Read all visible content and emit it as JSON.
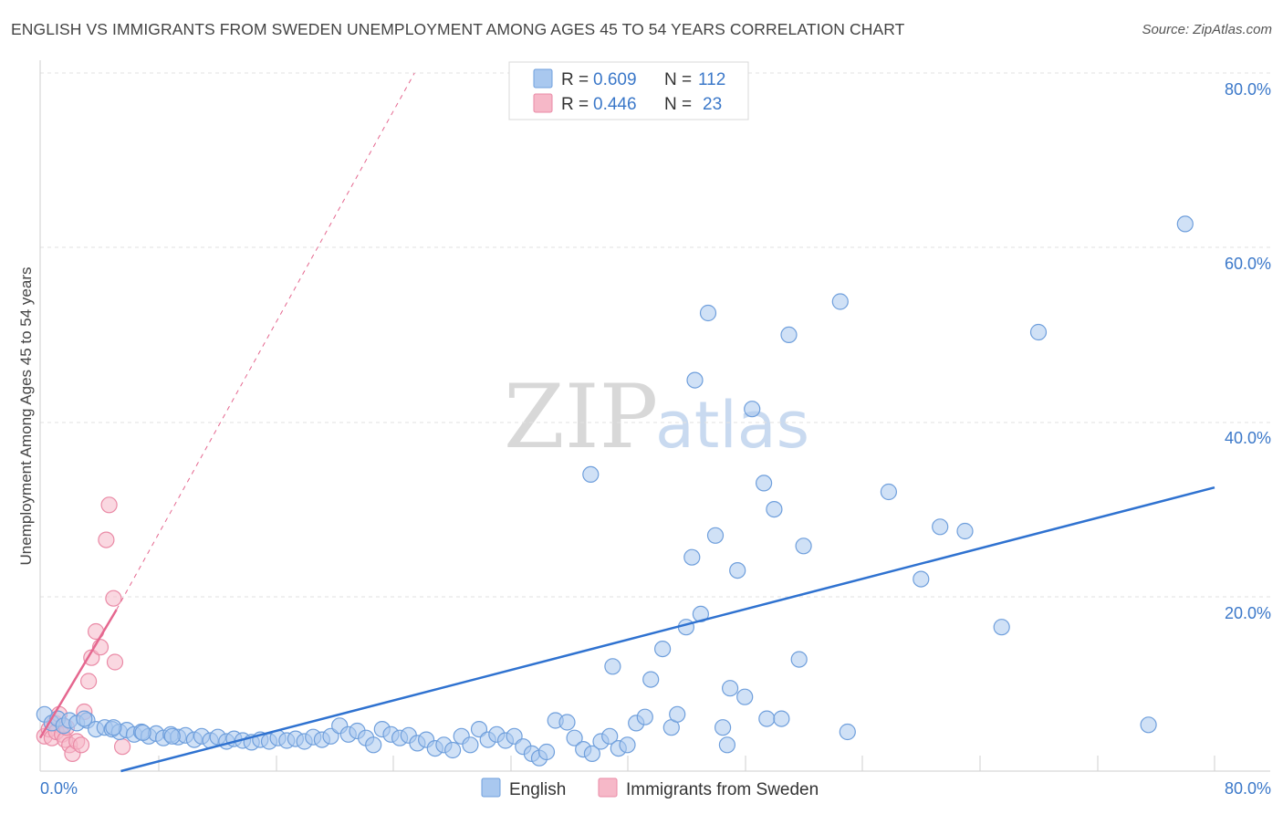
{
  "chart_data": {
    "type": "scatter",
    "title": "ENGLISH VS IMMIGRANTS FROM SWEDEN UNEMPLOYMENT AMONG AGES 45 TO 54 YEARS CORRELATION CHART",
    "source": "Source: ZipAtlas.com",
    "ylabel": "Unemployment Among Ages 45 to 54 years",
    "xlabel": "",
    "xlim": [
      0,
      80
    ],
    "ylim": [
      0,
      80
    ],
    "x_tick_labels": [
      "0.0%",
      "80.0%"
    ],
    "y_tick_labels": [
      "20.0%",
      "40.0%",
      "60.0%",
      "80.0%"
    ],
    "watermark": {
      "zip": "ZIP",
      "atlas": "atlas"
    },
    "legend": {
      "r_label": "R =",
      "n_label": "N =",
      "entries": [
        {
          "name": "English",
          "r": "0.609",
          "n": "112"
        },
        {
          "name": "Immigrants from Sweden",
          "r": "0.446",
          "n": "23"
        }
      ]
    },
    "colors": {
      "english_fill": "#a9c8ef",
      "english_stroke": "#6f9fdc",
      "english_line": "#2f72d0",
      "sweden_fill": "#f6b8c8",
      "sweden_stroke": "#ea8aa6",
      "sweden_line": "#e5678f"
    },
    "series": [
      {
        "name": "English",
        "trend": {
          "x1": 5.5,
          "y1": 0,
          "x2": 80,
          "y2": 32.5
        },
        "points": [
          [
            0.3,
            6.5
          ],
          [
            0.8,
            5.5
          ],
          [
            1.2,
            6.0
          ],
          [
            1.6,
            5.2
          ],
          [
            2.0,
            5.8
          ],
          [
            2.5,
            5.5
          ],
          [
            3.2,
            5.8
          ],
          [
            3.8,
            4.8
          ],
          [
            4.4,
            5.0
          ],
          [
            4.9,
            4.8
          ],
          [
            5.4,
            4.5
          ],
          [
            5.9,
            4.7
          ],
          [
            6.4,
            4.2
          ],
          [
            6.9,
            4.5
          ],
          [
            7.4,
            4.0
          ],
          [
            7.9,
            4.3
          ],
          [
            8.4,
            3.8
          ],
          [
            8.9,
            4.2
          ],
          [
            9.4,
            3.9
          ],
          [
            9.9,
            4.1
          ],
          [
            10.5,
            3.6
          ],
          [
            11.0,
            4.0
          ],
          [
            11.6,
            3.5
          ],
          [
            12.1,
            3.9
          ],
          [
            12.7,
            3.4
          ],
          [
            13.2,
            3.7
          ],
          [
            13.8,
            3.5
          ],
          [
            14.4,
            3.3
          ],
          [
            15.0,
            3.6
          ],
          [
            15.6,
            3.4
          ],
          [
            16.2,
            3.8
          ],
          [
            16.8,
            3.5
          ],
          [
            17.4,
            3.7
          ],
          [
            18.0,
            3.4
          ],
          [
            18.6,
            3.9
          ],
          [
            19.2,
            3.6
          ],
          [
            19.8,
            4.0
          ],
          [
            20.4,
            5.2
          ],
          [
            21.0,
            4.2
          ],
          [
            21.6,
            4.6
          ],
          [
            22.2,
            3.8
          ],
          [
            22.7,
            3.0
          ],
          [
            23.3,
            4.8
          ],
          [
            23.9,
            4.2
          ],
          [
            24.5,
            3.8
          ],
          [
            25.1,
            4.1
          ],
          [
            25.7,
            3.2
          ],
          [
            26.3,
            3.6
          ],
          [
            26.9,
            2.6
          ],
          [
            27.5,
            3.0
          ],
          [
            28.1,
            2.4
          ],
          [
            28.7,
            4.0
          ],
          [
            29.3,
            3.0
          ],
          [
            29.9,
            4.8
          ],
          [
            30.5,
            3.6
          ],
          [
            31.1,
            4.2
          ],
          [
            31.7,
            3.5
          ],
          [
            32.3,
            4.0
          ],
          [
            32.9,
            2.8
          ],
          [
            33.5,
            2.0
          ],
          [
            34.0,
            1.5
          ],
          [
            34.5,
            2.2
          ],
          [
            35.1,
            5.8
          ],
          [
            35.9,
            5.6
          ],
          [
            36.4,
            3.8
          ],
          [
            37.0,
            2.5
          ],
          [
            37.6,
            2.0
          ],
          [
            38.2,
            3.4
          ],
          [
            38.8,
            4.0
          ],
          [
            39.4,
            2.6
          ],
          [
            40.0,
            3.0
          ],
          [
            40.6,
            5.5
          ],
          [
            41.2,
            6.2
          ],
          [
            39.0,
            12.0
          ],
          [
            41.6,
            10.5
          ],
          [
            42.4,
            14.0
          ],
          [
            43.0,
            5.0
          ],
          [
            43.4,
            6.5
          ],
          [
            44.0,
            16.5
          ],
          [
            45.0,
            18.0
          ],
          [
            44.4,
            24.5
          ],
          [
            44.6,
            44.8
          ],
          [
            45.5,
            52.5
          ],
          [
            46.0,
            27.0
          ],
          [
            37.5,
            34.0
          ],
          [
            47.5,
            23.0
          ],
          [
            48.5,
            41.5
          ],
          [
            49.3,
            33.0
          ],
          [
            50.0,
            30.0
          ],
          [
            51.0,
            50.0
          ],
          [
            52.0,
            25.8
          ],
          [
            47.0,
            9.5
          ],
          [
            48.0,
            8.5
          ],
          [
            46.5,
            5.0
          ],
          [
            46.8,
            3.0
          ],
          [
            49.5,
            6.0
          ],
          [
            50.5,
            6.0
          ],
          [
            51.7,
            12.8
          ],
          [
            55.0,
            4.5
          ],
          [
            54.5,
            53.8
          ],
          [
            57.8,
            32.0
          ],
          [
            60.0,
            22.0
          ],
          [
            61.3,
            28.0
          ],
          [
            63.0,
            27.5
          ],
          [
            65.5,
            16.5
          ],
          [
            68.0,
            50.3
          ],
          [
            75.5,
            5.3
          ],
          [
            78.0,
            62.7
          ],
          [
            3.0,
            6.0
          ],
          [
            5.0,
            5.0
          ],
          [
            7.0,
            4.4
          ],
          [
            9.0,
            4.0
          ]
        ]
      },
      {
        "name": "Immigrants from Sweden",
        "trend": {
          "x1": 0,
          "y1": 3.8,
          "x2": 5.2,
          "y2": 18.5
        },
        "trend_dashed": {
          "x1": 5.2,
          "y1": 18.5,
          "x2": 25.5,
          "y2": 80
        },
        "points": [
          [
            0.3,
            4.0
          ],
          [
            0.6,
            4.8
          ],
          [
            0.8,
            3.8
          ],
          [
            1.0,
            5.5
          ],
          [
            1.1,
            4.5
          ],
          [
            1.3,
            6.5
          ],
          [
            1.5,
            4.2
          ],
          [
            1.7,
            3.6
          ],
          [
            1.8,
            5.0
          ],
          [
            2.0,
            3.0
          ],
          [
            2.2,
            2.0
          ],
          [
            2.5,
            3.4
          ],
          [
            2.8,
            3.0
          ],
          [
            3.0,
            6.8
          ],
          [
            3.3,
            10.3
          ],
          [
            3.5,
            13.0
          ],
          [
            3.8,
            16.0
          ],
          [
            4.1,
            14.2
          ],
          [
            4.5,
            26.5
          ],
          [
            4.7,
            30.5
          ],
          [
            5.1,
            12.5
          ],
          [
            5.6,
            2.8
          ],
          [
            5.0,
            19.8
          ]
        ]
      }
    ]
  }
}
